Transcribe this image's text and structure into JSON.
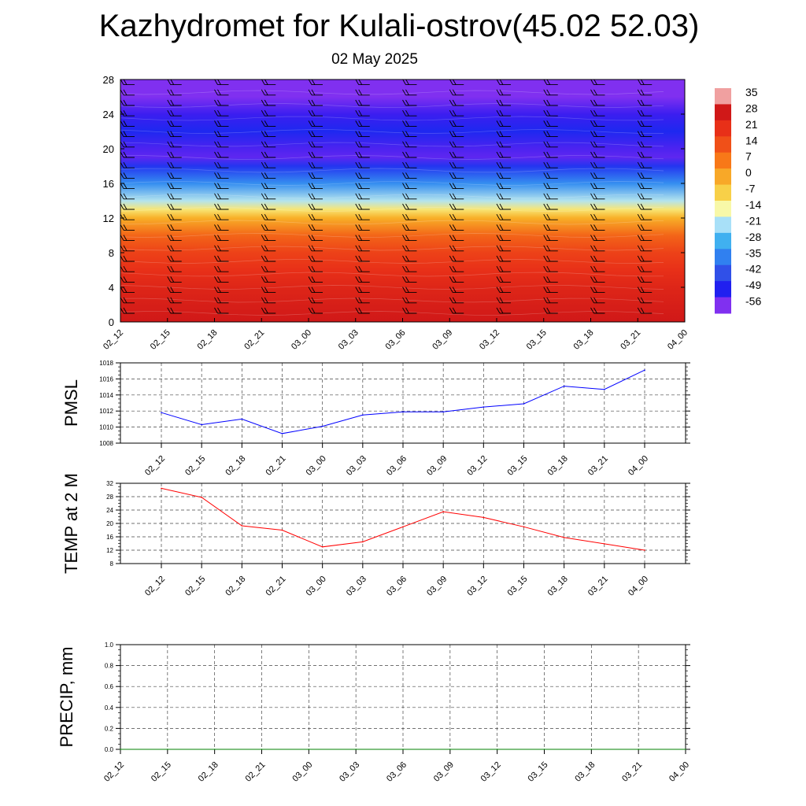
{
  "title": "Kazhydromet for Kulali-ostrov(45.02 52.03)",
  "subtitle": "02 May 2025",
  "chart_data": [
    {
      "type": "heatmap",
      "description_ticks": "time-height cross section",
      "x_ticks": [
        "02_12",
        "02_15",
        "02_18",
        "02_21",
        "03_00",
        "03_03",
        "03_06",
        "03_09",
        "03_12",
        "03_15",
        "03_18",
        "03_21",
        "04_00"
      ],
      "ylim": [
        0,
        28
      ],
      "y_ticks": [
        0,
        4,
        8,
        12,
        16,
        20,
        24,
        28
      ],
      "colorbar_labels": [
        "35",
        "28",
        "21",
        "14",
        "7",
        "0",
        "-7",
        "-14",
        "-21",
        "-28",
        "-35",
        "-42",
        "-49",
        "-56"
      ],
      "colorbar_colors": [
        "#f0a0a0",
        "#d01818",
        "#e83018",
        "#f05018",
        "#f87818",
        "#f8a828",
        "#f8d048",
        "#f8f8a8",
        "#a8e0f8",
        "#40b0f0",
        "#3080f0",
        "#3050e8",
        "#2020f0",
        "#8030f0"
      ],
      "temperature_profile": {
        "heights": [
          0,
          2,
          4,
          6,
          8,
          10,
          12,
          13,
          14,
          16,
          18,
          19,
          20,
          22,
          24,
          26,
          28
        ],
        "values": [
          28,
          26,
          24,
          21,
          17,
          11,
          0,
          -10,
          -20,
          -33,
          -46,
          -54,
          -53,
          -48,
          -52,
          -56,
          -57
        ]
      },
      "grid": false
    },
    {
      "type": "line",
      "ylabel": "PMSL",
      "categories": [
        "02_12",
        "02_15",
        "02_18",
        "02_21",
        "03_00",
        "03_03",
        "03_06",
        "03_09",
        "03_12",
        "03_15",
        "03_18",
        "03_21",
        "04_00"
      ],
      "ylim": [
        1008,
        1018
      ],
      "y_ticks": [
        1008,
        1010,
        1012,
        1014,
        1016,
        1018
      ],
      "series": [
        {
          "values": [
            1011.8,
            1010.3,
            1011.0,
            1009.2,
            1010.1,
            1011.5,
            1011.9,
            1011.9,
            1012.5,
            1012.9,
            1015.1,
            1014.7,
            1017.1
          ],
          "color": "#0000ff"
        }
      ],
      "grid": true
    },
    {
      "type": "line",
      "ylabel": "TEMP at 2 M",
      "categories": [
        "02_12",
        "02_15",
        "02_18",
        "02_21",
        "03_00",
        "03_03",
        "03_06",
        "03_09",
        "03_12",
        "03_15",
        "03_18",
        "03_21",
        "04_00"
      ],
      "ylim": [
        8,
        32
      ],
      "y_ticks": [
        8,
        12,
        16,
        20,
        24,
        28,
        32
      ],
      "series": [
        {
          "values": [
            30.5,
            27.8,
            19.3,
            18.0,
            13.0,
            14.5,
            19.0,
            23.5,
            21.8,
            19.0,
            15.8,
            13.9,
            12.0
          ],
          "color": "#ff0000"
        }
      ],
      "grid": true
    },
    {
      "type": "line",
      "ylabel": "PRECIP, mm",
      "categories": [
        "02_12",
        "02_15",
        "02_18",
        "02_21",
        "03_00",
        "03_03",
        "03_06",
        "03_09",
        "03_12",
        "03_15",
        "03_18",
        "03_21",
        "04_00"
      ],
      "ylim": [
        0.0,
        1.0
      ],
      "y_ticks": [
        "0.0",
        "0.2",
        "0.4",
        "0.6",
        "0.8",
        "1.0"
      ],
      "series": [
        {
          "values": [
            0,
            0,
            0,
            0,
            0,
            0,
            0,
            0,
            0,
            0,
            0,
            0,
            0
          ],
          "color": "#008000"
        }
      ],
      "grid": true
    }
  ]
}
